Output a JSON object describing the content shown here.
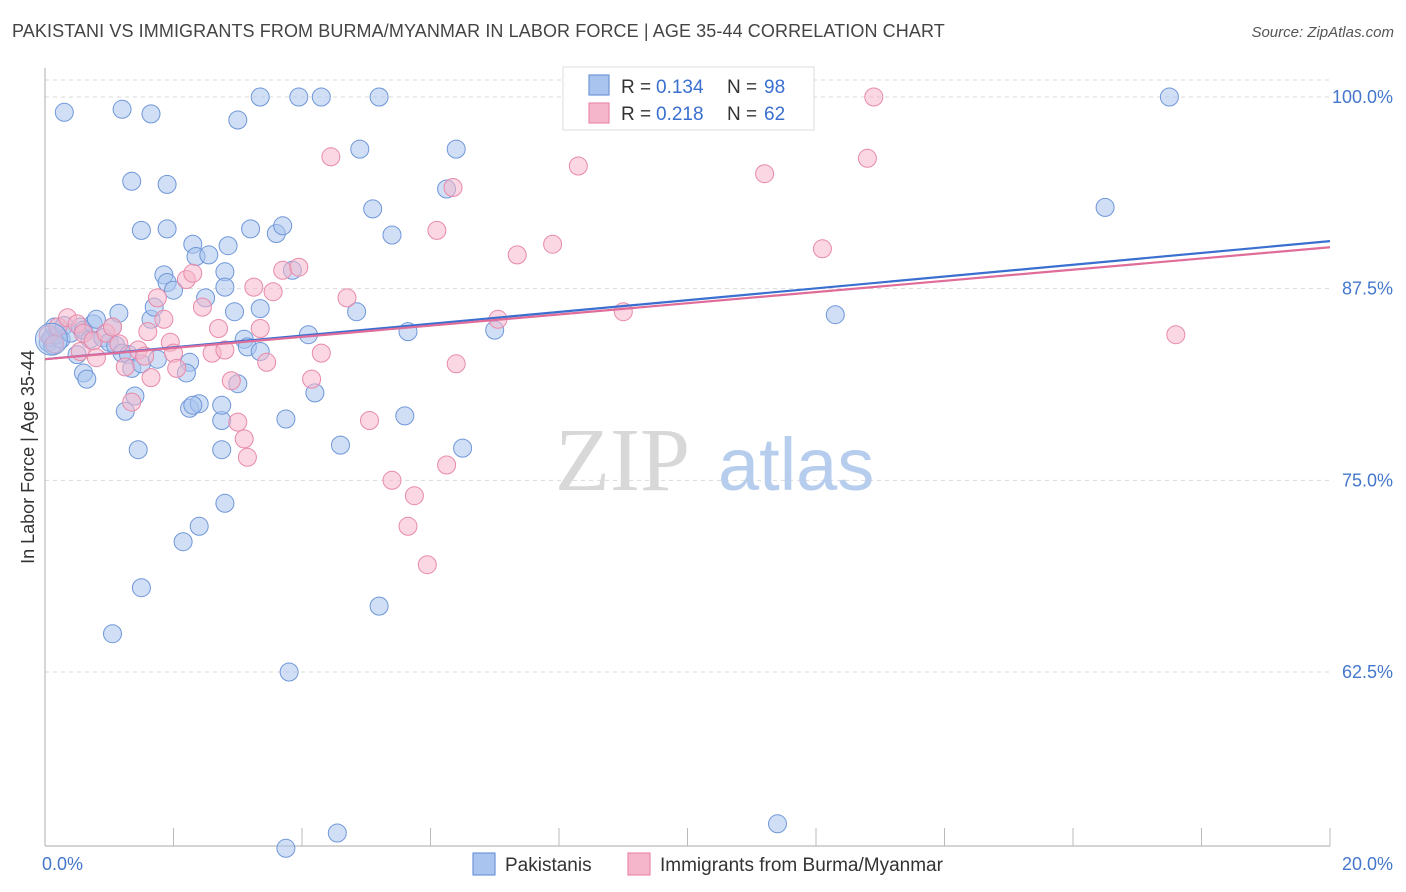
{
  "header": {
    "title": "PAKISTANI VS IMMIGRANTS FROM BURMA/MYANMAR IN LABOR FORCE | AGE 35-44 CORRELATION CHART",
    "source": "Source: ZipAtlas.com"
  },
  "watermark": {
    "zip": "ZIP",
    "atlas": "atlas"
  },
  "legend": {
    "rows": [
      {
        "r_label": "R =",
        "r_value": "0.134",
        "n_label": "N =",
        "n_value": "98"
      },
      {
        "r_label": "R =",
        "r_value": "0.218",
        "n_label": "N =",
        "n_value": "62"
      }
    ]
  },
  "bottom_legend": {
    "items": [
      "Pakistanis",
      "Immigrants from Burma/Myanmar"
    ]
  },
  "colors": {
    "blue_fill": "#a9c4ee",
    "blue_stroke": "#6f97d8",
    "blue_line": "#3a6fd0",
    "pink_fill": "#f5b6cb",
    "pink_stroke": "#e88aaa",
    "pink_line": "#e06c99",
    "grid": "#d9d9d9",
    "tick_text": "#4477cc"
  },
  "chart_data": {
    "type": "scatter",
    "title": "PAKISTANI VS IMMIGRANTS FROM BURMA/MYANMAR IN LABOR FORCE | AGE 35-44 CORRELATION CHART",
    "xlabel": "",
    "ylabel": "In Labor Force | Age 35-44",
    "xlim": [
      0,
      20
    ],
    "ylim": [
      51.5,
      101.5
    ],
    "x_ticks": [
      "0.0%",
      "20.0%"
    ],
    "y_ticks": [
      {
        "value": 100.0,
        "label": "100.0%"
      },
      {
        "value": 87.5,
        "label": "87.5%"
      },
      {
        "value": 75.0,
        "label": "75.0%"
      },
      {
        "value": 62.5,
        "label": "62.5%"
      }
    ],
    "grid": "horizontal dashed",
    "legend_position": "top-center",
    "series": [
      {
        "name": "Pakistanis",
        "color": "#a9c4ee",
        "trend": {
          "x": [
            0,
            20
          ],
          "y": [
            82.9,
            90.6
          ]
        },
        "points": [
          [
            0.05,
            84.0
          ],
          [
            0.1,
            84.3
          ],
          [
            0.12,
            83.8
          ],
          [
            0.15,
            85.0
          ],
          [
            0.2,
            84.5
          ],
          [
            0.25,
            84.2
          ],
          [
            0.3,
            85.1
          ],
          [
            0.4,
            84.6
          ],
          [
            0.5,
            83.2
          ],
          [
            0.55,
            85.0
          ],
          [
            0.6,
            84.8
          ],
          [
            0.7,
            84.2
          ],
          [
            0.75,
            85.2
          ],
          [
            0.8,
            85.5
          ],
          [
            0.9,
            84.3
          ],
          [
            1.0,
            84.0
          ],
          [
            1.05,
            85.0
          ],
          [
            1.1,
            83.8
          ],
          [
            1.15,
            85.9
          ],
          [
            1.2,
            83.3
          ],
          [
            1.3,
            83.2
          ],
          [
            1.35,
            82.3
          ],
          [
            1.4,
            80.5
          ],
          [
            1.5,
            82.6
          ],
          [
            1.65,
            85.5
          ],
          [
            1.7,
            86.3
          ],
          [
            1.85,
            88.4
          ],
          [
            1.9,
            87.9
          ],
          [
            2.0,
            87.4
          ],
          [
            0.6,
            82.0
          ],
          [
            0.65,
            81.6
          ],
          [
            1.75,
            82.9
          ],
          [
            1.45,
            77.0
          ],
          [
            1.25,
            79.5
          ],
          [
            1.9,
            91.4
          ],
          [
            1.35,
            94.5
          ],
          [
            1.9,
            94.3
          ],
          [
            2.3,
            90.4
          ],
          [
            2.35,
            89.6
          ],
          [
            2.25,
            82.7
          ],
          [
            2.25,
            79.7
          ],
          [
            2.55,
            89.7
          ],
          [
            2.5,
            86.9
          ],
          [
            2.4,
            80.0
          ],
          [
            2.85,
            90.3
          ],
          [
            2.8,
            88.6
          ],
          [
            2.8,
            87.6
          ],
          [
            2.95,
            86.0
          ],
          [
            2.75,
            78.9
          ],
          [
            2.75,
            77.0
          ],
          [
            3.2,
            91.4
          ],
          [
            3.1,
            84.2
          ],
          [
            3.15,
            83.7
          ],
          [
            3.35,
            83.4
          ],
          [
            3.6,
            91.1
          ],
          [
            3.7,
            91.6
          ],
          [
            3.75,
            79.0
          ],
          [
            4.1,
            84.5
          ],
          [
            4.2,
            80.7
          ],
          [
            4.6,
            77.3
          ],
          [
            4.9,
            96.6
          ],
          [
            5.1,
            92.7
          ],
          [
            5.4,
            91.0
          ],
          [
            5.65,
            84.7
          ],
          [
            5.6,
            79.2
          ],
          [
            6.25,
            94.0
          ],
          [
            6.4,
            96.6
          ],
          [
            6.5,
            77.1
          ],
          [
            7.0,
            84.8
          ],
          [
            1.5,
            91.3
          ],
          [
            2.2,
            82.0
          ],
          [
            2.3,
            79.9
          ],
          [
            3.0,
            81.3
          ],
          [
            0.3,
            99.0
          ],
          [
            1.2,
            99.2
          ],
          [
            3.0,
            98.5
          ],
          [
            3.35,
            100.0
          ],
          [
            3.95,
            100.0
          ],
          [
            4.3,
            100.0
          ],
          [
            5.2,
            100.0
          ],
          [
            17.5,
            100.0
          ],
          [
            16.5,
            92.8
          ],
          [
            12.3,
            85.8
          ],
          [
            2.8,
            73.5
          ],
          [
            2.4,
            72.0
          ],
          [
            2.15,
            71.0
          ],
          [
            1.5,
            68.0
          ],
          [
            1.05,
            65.0
          ],
          [
            5.2,
            66.8
          ],
          [
            3.8,
            62.5
          ],
          [
            11.4,
            52.6
          ],
          [
            4.55,
            52.0
          ],
          [
            3.75,
            51.0
          ],
          [
            1.65,
            98.9
          ],
          [
            2.75,
            79.9
          ],
          [
            3.35,
            86.2
          ],
          [
            4.85,
            86.0
          ],
          [
            3.85,
            88.7
          ]
        ]
      },
      {
        "name": "Immigrants from Burma/Myanmar",
        "color": "#f5b6cb",
        "trend": {
          "x": [
            0,
            20
          ],
          "y": [
            82.9,
            90.2
          ]
        },
        "points": [
          [
            0.05,
            84.5
          ],
          [
            0.15,
            83.9
          ],
          [
            0.2,
            85.0
          ],
          [
            0.35,
            85.6
          ],
          [
            0.5,
            85.2
          ],
          [
            0.55,
            83.4
          ],
          [
            0.6,
            84.6
          ],
          [
            0.75,
            84.1
          ],
          [
            0.8,
            83.0
          ],
          [
            0.95,
            84.6
          ],
          [
            1.05,
            85.0
          ],
          [
            1.15,
            83.9
          ],
          [
            1.25,
            82.4
          ],
          [
            1.35,
            80.1
          ],
          [
            1.45,
            83.5
          ],
          [
            1.55,
            83.1
          ],
          [
            1.6,
            84.7
          ],
          [
            1.65,
            81.7
          ],
          [
            1.75,
            86.9
          ],
          [
            1.85,
            85.5
          ],
          [
            1.95,
            84.0
          ],
          [
            2.0,
            83.3
          ],
          [
            2.05,
            82.3
          ],
          [
            2.2,
            88.1
          ],
          [
            2.3,
            88.5
          ],
          [
            2.45,
            86.3
          ],
          [
            2.6,
            83.3
          ],
          [
            2.7,
            84.9
          ],
          [
            2.8,
            83.5
          ],
          [
            2.9,
            81.5
          ],
          [
            3.0,
            78.8
          ],
          [
            3.1,
            77.7
          ],
          [
            3.15,
            76.5
          ],
          [
            3.25,
            87.6
          ],
          [
            3.35,
            84.9
          ],
          [
            3.45,
            82.7
          ],
          [
            3.55,
            87.3
          ],
          [
            3.7,
            88.7
          ],
          [
            3.95,
            88.9
          ],
          [
            4.15,
            81.6
          ],
          [
            4.3,
            83.3
          ],
          [
            4.45,
            96.1
          ],
          [
            4.7,
            86.9
          ],
          [
            5.05,
            78.9
          ],
          [
            5.4,
            75.0
          ],
          [
            5.65,
            72.0
          ],
          [
            5.75,
            74.0
          ],
          [
            5.95,
            69.5
          ],
          [
            6.1,
            91.3
          ],
          [
            6.25,
            76.0
          ],
          [
            6.35,
            94.1
          ],
          [
            6.4,
            82.6
          ],
          [
            7.05,
            85.5
          ],
          [
            7.35,
            89.7
          ],
          [
            7.9,
            90.4
          ],
          [
            8.3,
            95.5
          ],
          [
            9.0,
            86.0
          ],
          [
            11.2,
            95.0
          ],
          [
            12.1,
            90.1
          ],
          [
            12.8,
            96.0
          ],
          [
            17.6,
            84.5
          ],
          [
            12.9,
            100.0
          ]
        ]
      }
    ]
  }
}
